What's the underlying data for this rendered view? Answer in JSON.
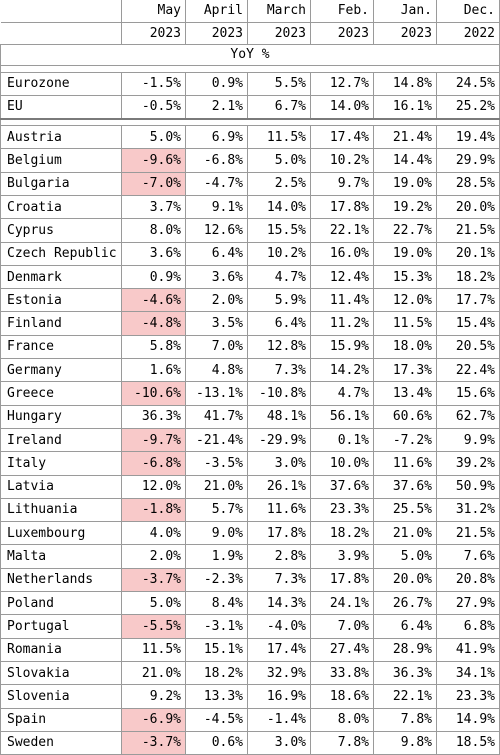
{
  "header": {
    "months": [
      "May",
      "April",
      "March",
      "Feb.",
      "Jan.",
      "Dec."
    ],
    "years": [
      "2023",
      "2023",
      "2023",
      "2023",
      "2023",
      "2022"
    ],
    "unit": "YoY %"
  },
  "colors": {
    "negative_highlight": "#f8c9c9",
    "grid": "#9a9a9a"
  },
  "aggregates": [
    {
      "name": "Eurozone",
      "values": [
        "-1.5%",
        "0.9%",
        "5.5%",
        "12.7%",
        "14.8%",
        "24.5%"
      ]
    },
    {
      "name": "EU",
      "values": [
        "-0.5%",
        "2.1%",
        "6.7%",
        "14.0%",
        "16.1%",
        "25.2%"
      ]
    }
  ],
  "countries": [
    {
      "name": "Austria",
      "values": [
        "5.0%",
        "6.9%",
        "11.5%",
        "17.4%",
        "21.4%",
        "19.4%"
      ],
      "highlight": false
    },
    {
      "name": "Belgium",
      "values": [
        "-9.6%",
        "-6.8%",
        "5.0%",
        "10.2%",
        "14.4%",
        "29.9%"
      ],
      "highlight": true
    },
    {
      "name": "Bulgaria",
      "values": [
        "-7.0%",
        "-4.7%",
        "2.5%",
        "9.7%",
        "19.0%",
        "28.5%"
      ],
      "highlight": true
    },
    {
      "name": "Croatia",
      "values": [
        "3.7%",
        "9.1%",
        "14.0%",
        "17.8%",
        "19.2%",
        "20.0%"
      ],
      "highlight": false
    },
    {
      "name": "Cyprus",
      "values": [
        "8.0%",
        "12.6%",
        "15.5%",
        "22.1%",
        "22.7%",
        "21.5%"
      ],
      "highlight": false
    },
    {
      "name": "Czech Republic",
      "values": [
        "3.6%",
        "6.4%",
        "10.2%",
        "16.0%",
        "19.0%",
        "20.1%"
      ],
      "highlight": false
    },
    {
      "name": "Denmark",
      "values": [
        "0.9%",
        "3.6%",
        "4.7%",
        "12.4%",
        "15.3%",
        "18.2%"
      ],
      "highlight": false
    },
    {
      "name": "Estonia",
      "values": [
        "-4.6%",
        "2.0%",
        "5.9%",
        "11.4%",
        "12.0%",
        "17.7%"
      ],
      "highlight": true
    },
    {
      "name": "Finland",
      "values": [
        "-4.8%",
        "3.5%",
        "6.4%",
        "11.2%",
        "11.5%",
        "15.4%"
      ],
      "highlight": true
    },
    {
      "name": "France",
      "values": [
        "5.8%",
        "7.0%",
        "12.8%",
        "15.9%",
        "18.0%",
        "20.5%"
      ],
      "highlight": false
    },
    {
      "name": "Germany",
      "values": [
        "1.6%",
        "4.8%",
        "7.3%",
        "14.2%",
        "17.3%",
        "22.4%"
      ],
      "highlight": false
    },
    {
      "name": "Greece",
      "values": [
        "-10.6%",
        "-13.1%",
        "-10.8%",
        "4.7%",
        "13.4%",
        "15.6%"
      ],
      "highlight": true
    },
    {
      "name": "Hungary",
      "values": [
        "36.3%",
        "41.7%",
        "48.1%",
        "56.1%",
        "60.6%",
        "62.7%"
      ],
      "highlight": false
    },
    {
      "name": "Ireland",
      "values": [
        "-9.7%",
        "-21.4%",
        "-29.9%",
        "0.1%",
        "-7.2%",
        "9.9%"
      ],
      "highlight": true
    },
    {
      "name": "Italy",
      "values": [
        "-6.8%",
        "-3.5%",
        "3.0%",
        "10.0%",
        "11.6%",
        "39.2%"
      ],
      "highlight": true
    },
    {
      "name": "Latvia",
      "values": [
        "12.0%",
        "21.0%",
        "26.1%",
        "37.6%",
        "37.6%",
        "50.9%"
      ],
      "highlight": false
    },
    {
      "name": "Lithuania",
      "values": [
        "-1.8%",
        "5.7%",
        "11.6%",
        "23.3%",
        "25.5%",
        "31.2%"
      ],
      "highlight": true
    },
    {
      "name": "Luxembourg",
      "values": [
        "4.0%",
        "9.0%",
        "17.8%",
        "18.2%",
        "21.0%",
        "21.5%"
      ],
      "highlight": false
    },
    {
      "name": "Malta",
      "values": [
        "2.0%",
        "1.9%",
        "2.8%",
        "3.9%",
        "5.0%",
        "7.6%"
      ],
      "highlight": false
    },
    {
      "name": "Netherlands",
      "values": [
        "-3.7%",
        "-2.3%",
        "7.3%",
        "17.8%",
        "20.0%",
        "20.8%"
      ],
      "highlight": true
    },
    {
      "name": "Poland",
      "values": [
        "5.0%",
        "8.4%",
        "14.3%",
        "24.1%",
        "26.7%",
        "27.9%"
      ],
      "highlight": false
    },
    {
      "name": "Portugal",
      "values": [
        "-5.5%",
        "-3.1%",
        "-4.0%",
        "7.0%",
        "6.4%",
        "6.8%"
      ],
      "highlight": true
    },
    {
      "name": "Romania",
      "values": [
        "11.5%",
        "15.1%",
        "17.4%",
        "27.4%",
        "28.9%",
        "41.9%"
      ],
      "highlight": false
    },
    {
      "name": "Slovakia",
      "values": [
        "21.0%",
        "18.2%",
        "32.9%",
        "33.8%",
        "36.3%",
        "34.1%"
      ],
      "highlight": false
    },
    {
      "name": "Slovenia",
      "values": [
        "9.2%",
        "13.3%",
        "16.9%",
        "18.6%",
        "22.1%",
        "23.3%"
      ],
      "highlight": false
    },
    {
      "name": "Spain",
      "values": [
        "-6.9%",
        "-4.5%",
        "-1.4%",
        "8.0%",
        "7.8%",
        "14.9%"
      ],
      "highlight": true
    },
    {
      "name": "Sweden",
      "values": [
        "-3.7%",
        "0.6%",
        "3.0%",
        "7.8%",
        "9.8%",
        "18.5%"
      ],
      "highlight": true
    }
  ]
}
